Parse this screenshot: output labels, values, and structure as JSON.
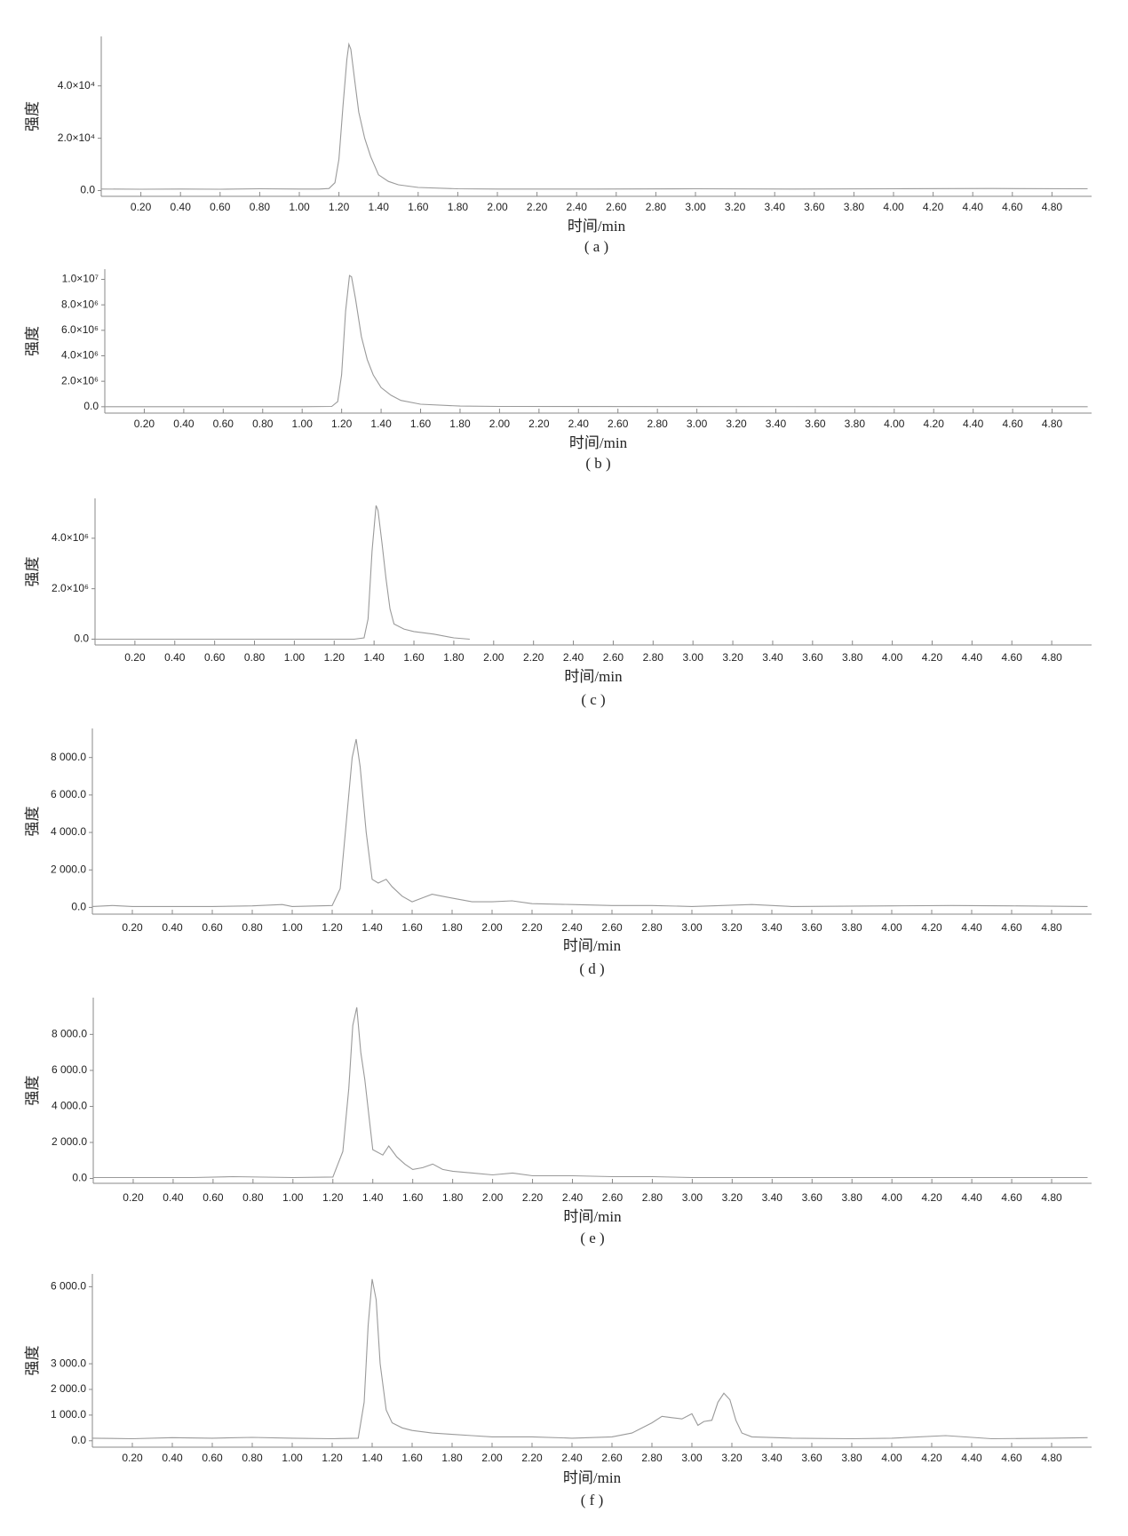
{
  "chart_data": [
    {
      "type": "line",
      "caption": "( a )",
      "x_label": "时间/min",
      "y_label": "强度",
      "color": "#9a9a9a",
      "xlim": [
        0,
        5
      ],
      "ylim": [
        -2200,
        58900
      ],
      "xticks": [
        {
          "value": 0.2,
          "label": "0.20"
        },
        {
          "value": 0.4,
          "label": "0.40"
        },
        {
          "value": 0.6,
          "label": "0.60"
        },
        {
          "value": 0.8,
          "label": "0.80"
        },
        {
          "value": 1.0,
          "label": "1.00"
        },
        {
          "value": 1.2,
          "label": "1.20"
        },
        {
          "value": 1.4,
          "label": "1.40"
        },
        {
          "value": 1.6,
          "label": "1.60"
        },
        {
          "value": 1.8,
          "label": "1.80"
        },
        {
          "value": 2.0,
          "label": "2.00"
        },
        {
          "value": 2.2,
          "label": "2.20"
        },
        {
          "value": 2.4,
          "label": "2.40"
        },
        {
          "value": 2.6,
          "label": "2.60"
        },
        {
          "value": 2.8,
          "label": "2.80"
        },
        {
          "value": 3.0,
          "label": "3.00"
        },
        {
          "value": 3.2,
          "label": "3.20"
        },
        {
          "value": 3.4,
          "label": "3.40"
        },
        {
          "value": 3.6,
          "label": "3.60"
        },
        {
          "value": 3.8,
          "label": "3.80"
        },
        {
          "value": 4.0,
          "label": "4.00"
        },
        {
          "value": 4.2,
          "label": "4.20"
        },
        {
          "value": 4.4,
          "label": "4.40"
        },
        {
          "value": 4.6,
          "label": "4.60"
        },
        {
          "value": 4.8,
          "label": "4.80"
        }
      ],
      "yticks": [
        {
          "value": 0,
          "label": "0.0"
        },
        {
          "value": 20000,
          "label": "2.0×10⁴"
        },
        {
          "value": 40000,
          "label": "4.0×10⁴"
        }
      ],
      "x": [
        0,
        0.2,
        0.4,
        0.6,
        0.8,
        1.0,
        1.1,
        1.15,
        1.18,
        1.2,
        1.22,
        1.24,
        1.25,
        1.26,
        1.28,
        1.3,
        1.33,
        1.36,
        1.4,
        1.45,
        1.5,
        1.6,
        1.8,
        2.0,
        2.5,
        3.0,
        3.5,
        4.0,
        4.5,
        4.98
      ],
      "values": [
        600,
        500,
        600,
        500,
        700,
        600,
        600,
        800,
        3000,
        12000,
        32000,
        50000,
        55900,
        54000,
        42000,
        30000,
        20000,
        13000,
        6000,
        3500,
        2200,
        1200,
        700,
        600,
        600,
        700,
        600,
        700,
        800,
        700
      ]
    },
    {
      "type": "line",
      "caption": "( b )",
      "x_label": "时间/min",
      "y_label": "强度",
      "color": "#9a9a9a",
      "xlim": [
        0,
        5
      ],
      "ylim": [
        -500000,
        10800000
      ],
      "xticks": [
        {
          "value": 0.2,
          "label": "0.20"
        },
        {
          "value": 0.4,
          "label": "0.40"
        },
        {
          "value": 0.6,
          "label": "0.60"
        },
        {
          "value": 0.8,
          "label": "0.80"
        },
        {
          "value": 1.0,
          "label": "1.00"
        },
        {
          "value": 1.2,
          "label": "1.20"
        },
        {
          "value": 1.4,
          "label": "1.40"
        },
        {
          "value": 1.6,
          "label": "1.60"
        },
        {
          "value": 1.8,
          "label": "1.80"
        },
        {
          "value": 2.0,
          "label": "2.00"
        },
        {
          "value": 2.2,
          "label": "2.20"
        },
        {
          "value": 2.4,
          "label": "2.40"
        },
        {
          "value": 2.6,
          "label": "2.60"
        },
        {
          "value": 2.8,
          "label": "2.80"
        },
        {
          "value": 3.0,
          "label": "3.00"
        },
        {
          "value": 3.2,
          "label": "3.20"
        },
        {
          "value": 3.4,
          "label": "3.40"
        },
        {
          "value": 3.6,
          "label": "3.60"
        },
        {
          "value": 3.8,
          "label": "3.80"
        },
        {
          "value": 4.0,
          "label": "4.00"
        },
        {
          "value": 4.2,
          "label": "4.20"
        },
        {
          "value": 4.4,
          "label": "4.40"
        },
        {
          "value": 4.6,
          "label": "4.60"
        },
        {
          "value": 4.8,
          "label": "4.80"
        }
      ],
      "yticks": [
        {
          "value": 0,
          "label": "0.0"
        },
        {
          "value": 2000000,
          "label": "2.0×10⁶"
        },
        {
          "value": 4000000,
          "label": "4.0×10⁶"
        },
        {
          "value": 6000000,
          "label": "6.0×10⁶"
        },
        {
          "value": 8000000,
          "label": "8.0×10⁶"
        },
        {
          "value": 10000000,
          "label": "1.0×10⁷"
        }
      ],
      "x": [
        0,
        0.5,
        1.0,
        1.15,
        1.18,
        1.2,
        1.22,
        1.24,
        1.25,
        1.27,
        1.3,
        1.33,
        1.36,
        1.4,
        1.45,
        1.5,
        1.6,
        1.8,
        2.0,
        3.0,
        4.0,
        4.98
      ],
      "values": [
        0,
        0,
        0,
        20000,
        400000,
        2500000,
        7500000,
        10300000,
        10200000,
        8500000,
        5500000,
        3700000,
        2500000,
        1500000,
        900000,
        500000,
        200000,
        50000,
        20000,
        10000,
        0,
        0
      ]
    },
    {
      "type": "line",
      "caption": "( c )",
      "x_label": "时间/min",
      "y_label": "强度",
      "color": "#9a9a9a",
      "xlim": [
        0,
        5
      ],
      "ylim": [
        -230000,
        5580000
      ],
      "xticks": [
        {
          "value": 0.2,
          "label": "0.20"
        },
        {
          "value": 0.4,
          "label": "0.40"
        },
        {
          "value": 0.6,
          "label": "0.60"
        },
        {
          "value": 0.8,
          "label": "0.80"
        },
        {
          "value": 1.0,
          "label": "1.00"
        },
        {
          "value": 1.2,
          "label": "1.20"
        },
        {
          "value": 1.4,
          "label": "1.40"
        },
        {
          "value": 1.6,
          "label": "1.60"
        },
        {
          "value": 1.8,
          "label": "1.80"
        },
        {
          "value": 2.0,
          "label": "2.00"
        },
        {
          "value": 2.2,
          "label": "2.20"
        },
        {
          "value": 2.4,
          "label": "2.40"
        },
        {
          "value": 2.6,
          "label": "2.60"
        },
        {
          "value": 2.8,
          "label": "2.80"
        },
        {
          "value": 3.0,
          "label": "3.00"
        },
        {
          "value": 3.2,
          "label": "3.20"
        },
        {
          "value": 3.4,
          "label": "3.40"
        },
        {
          "value": 3.6,
          "label": "3.60"
        },
        {
          "value": 3.8,
          "label": "3.80"
        },
        {
          "value": 4.0,
          "label": "4.00"
        },
        {
          "value": 4.2,
          "label": "4.20"
        },
        {
          "value": 4.4,
          "label": "4.40"
        },
        {
          "value": 4.6,
          "label": "4.60"
        },
        {
          "value": 4.8,
          "label": "4.80"
        }
      ],
      "yticks": [
        {
          "value": 0,
          "label": "0.0"
        },
        {
          "value": 2000000,
          "label": "2.0×10⁶"
        },
        {
          "value": 4000000,
          "label": "4.0×10⁶"
        }
      ],
      "x": [
        0,
        0.5,
        1.0,
        1.3,
        1.35,
        1.37,
        1.39,
        1.41,
        1.42,
        1.44,
        1.46,
        1.48,
        1.5,
        1.55,
        1.6,
        1.7,
        1.8,
        1.88
      ],
      "values": [
        0,
        0,
        0,
        0,
        50000,
        800000,
        3500000,
        5300000,
        5100000,
        3800000,
        2400000,
        1200000,
        600000,
        400000,
        300000,
        200000,
        50000,
        0
      ]
    },
    {
      "type": "line",
      "caption": "( d )",
      "x_label": "时间/min",
      "y_label": "强度",
      "color": "#9a9a9a",
      "xlim": [
        0,
        5
      ],
      "ylim": [
        -360,
        9550
      ],
      "xticks": [
        {
          "value": 0.2,
          "label": "0.20"
        },
        {
          "value": 0.4,
          "label": "0.40"
        },
        {
          "value": 0.6,
          "label": "0.60"
        },
        {
          "value": 0.8,
          "label": "0.80"
        },
        {
          "value": 1.0,
          "label": "1.00"
        },
        {
          "value": 1.2,
          "label": "1.20"
        },
        {
          "value": 1.4,
          "label": "1.40"
        },
        {
          "value": 1.6,
          "label": "1.60"
        },
        {
          "value": 1.8,
          "label": "1.80"
        },
        {
          "value": 2.0,
          "label": "2.00"
        },
        {
          "value": 2.2,
          "label": "2.20"
        },
        {
          "value": 2.4,
          "label": "2.40"
        },
        {
          "value": 2.6,
          "label": "2.60"
        },
        {
          "value": 2.8,
          "label": "2.80"
        },
        {
          "value": 3.0,
          "label": "3.00"
        },
        {
          "value": 3.2,
          "label": "3.20"
        },
        {
          "value": 3.4,
          "label": "3.40"
        },
        {
          "value": 3.6,
          "label": "3.60"
        },
        {
          "value": 3.8,
          "label": "3.80"
        },
        {
          "value": 4.0,
          "label": "4.00"
        },
        {
          "value": 4.2,
          "label": "4.20"
        },
        {
          "value": 4.4,
          "label": "4.40"
        },
        {
          "value": 4.6,
          "label": "4.60"
        },
        {
          "value": 4.8,
          "label": "4.80"
        }
      ],
      "yticks": [
        {
          "value": 0,
          "label": "0.0"
        },
        {
          "value": 2000,
          "label": "2 000.0"
        },
        {
          "value": 4000,
          "label": "4 000.0"
        },
        {
          "value": 6000,
          "label": "6 000.0"
        },
        {
          "value": 8000,
          "label": "8 000.0"
        }
      ],
      "x": [
        0,
        0.1,
        0.2,
        0.4,
        0.6,
        0.8,
        0.95,
        1.0,
        1.2,
        1.24,
        1.27,
        1.3,
        1.32,
        1.34,
        1.37,
        1.4,
        1.43,
        1.47,
        1.5,
        1.55,
        1.6,
        1.65,
        1.7,
        1.75,
        1.8,
        1.9,
        2.0,
        2.1,
        2.2,
        2.4,
        2.6,
        2.8,
        3.0,
        3.3,
        3.5,
        4.0,
        4.3,
        4.6,
        4.98
      ],
      "values": [
        50,
        100,
        50,
        50,
        50,
        80,
        150,
        50,
        100,
        1000,
        4500,
        8000,
        8980,
        7500,
        4000,
        1500,
        1300,
        1500,
        1100,
        600,
        300,
        500,
        700,
        600,
        500,
        300,
        300,
        350,
        200,
        150,
        100,
        100,
        50,
        150,
        50,
        80,
        100,
        80,
        50
      ]
    },
    {
      "type": "line",
      "caption": "( e )",
      "x_label": "时间/min",
      "y_label": "强度",
      "color": "#9a9a9a",
      "xlim": [
        0,
        5
      ],
      "ylim": [
        -270,
        10040
      ],
      "xticks": [
        {
          "value": 0.2,
          "label": "0.20"
        },
        {
          "value": 0.4,
          "label": "0.40"
        },
        {
          "value": 0.6,
          "label": "0.60"
        },
        {
          "value": 0.8,
          "label": "0.80"
        },
        {
          "value": 1.0,
          "label": "1.00"
        },
        {
          "value": 1.2,
          "label": "1.20"
        },
        {
          "value": 1.4,
          "label": "1.40"
        },
        {
          "value": 1.6,
          "label": "1.60"
        },
        {
          "value": 1.8,
          "label": "1.80"
        },
        {
          "value": 2.0,
          "label": "2.00"
        },
        {
          "value": 2.2,
          "label": "2.20"
        },
        {
          "value": 2.4,
          "label": "2.40"
        },
        {
          "value": 2.6,
          "label": "2.60"
        },
        {
          "value": 2.8,
          "label": "2.80"
        },
        {
          "value": 3.0,
          "label": "3.00"
        },
        {
          "value": 3.2,
          "label": "3.20"
        },
        {
          "value": 3.4,
          "label": "3.40"
        },
        {
          "value": 3.6,
          "label": "3.60"
        },
        {
          "value": 3.8,
          "label": "3.80"
        },
        {
          "value": 4.0,
          "label": "4.00"
        },
        {
          "value": 4.2,
          "label": "4.20"
        },
        {
          "value": 4.4,
          "label": "4.40"
        },
        {
          "value": 4.6,
          "label": "4.60"
        },
        {
          "value": 4.8,
          "label": "4.80"
        }
      ],
      "yticks": [
        {
          "value": 0,
          "label": "0.0"
        },
        {
          "value": 2000,
          "label": "2 000.0"
        },
        {
          "value": 4000,
          "label": "4 000.0"
        },
        {
          "value": 6000,
          "label": "6 000.0"
        },
        {
          "value": 8000,
          "label": "8 000.0"
        }
      ],
      "x": [
        0,
        0.5,
        0.7,
        1.0,
        1.2,
        1.25,
        1.28,
        1.3,
        1.32,
        1.34,
        1.36,
        1.4,
        1.45,
        1.48,
        1.52,
        1.56,
        1.6,
        1.65,
        1.7,
        1.75,
        1.8,
        1.9,
        2.0,
        2.1,
        2.2,
        2.4,
        2.6,
        2.8,
        3.0,
        3.5,
        4.0,
        4.5,
        4.98
      ],
      "values": [
        50,
        50,
        100,
        50,
        80,
        1500,
        5000,
        8500,
        9500,
        7000,
        5500,
        1600,
        1300,
        1800,
        1200,
        800,
        500,
        600,
        800,
        500,
        400,
        300,
        200,
        300,
        150,
        150,
        100,
        100,
        50,
        50,
        50,
        50,
        50
      ]
    },
    {
      "type": "line",
      "caption": "( f )",
      "x_label": "时间/min",
      "y_label": "强度",
      "color": "#9a9a9a",
      "xlim": [
        0,
        5
      ],
      "ylim": [
        -250,
        6500
      ],
      "xticks": [
        {
          "value": 0.2,
          "label": "0.20"
        },
        {
          "value": 0.4,
          "label": "0.40"
        },
        {
          "value": 0.6,
          "label": "0.60"
        },
        {
          "value": 0.8,
          "label": "0.80"
        },
        {
          "value": 1.0,
          "label": "1.00"
        },
        {
          "value": 1.2,
          "label": "1.20"
        },
        {
          "value": 1.4,
          "label": "1.40"
        },
        {
          "value": 1.6,
          "label": "1.60"
        },
        {
          "value": 1.8,
          "label": "1.80"
        },
        {
          "value": 2.0,
          "label": "2.00"
        },
        {
          "value": 2.2,
          "label": "2.20"
        },
        {
          "value": 2.4,
          "label": "2.40"
        },
        {
          "value": 2.6,
          "label": "2.60"
        },
        {
          "value": 2.8,
          "label": "2.80"
        },
        {
          "value": 3.0,
          "label": "3.00"
        },
        {
          "value": 3.2,
          "label": "3.20"
        },
        {
          "value": 3.4,
          "label": "3.40"
        },
        {
          "value": 3.6,
          "label": "3.60"
        },
        {
          "value": 3.8,
          "label": "3.80"
        },
        {
          "value": 4.0,
          "label": "4.00"
        },
        {
          "value": 4.2,
          "label": "4.20"
        },
        {
          "value": 4.4,
          "label": "4.40"
        },
        {
          "value": 4.6,
          "label": "4.60"
        },
        {
          "value": 4.8,
          "label": "4.80"
        }
      ],
      "yticks": [
        {
          "value": 0,
          "label": "0.0"
        },
        {
          "value": 1000,
          "label": "1 000.0"
        },
        {
          "value": 2000,
          "label": "2 000.0"
        },
        {
          "value": 3000,
          "label": "3 000.0"
        },
        {
          "value": 6000,
          "label": "6 000.0"
        }
      ],
      "x": [
        0,
        0.2,
        0.4,
        0.6,
        0.8,
        1.0,
        1.2,
        1.33,
        1.36,
        1.38,
        1.4,
        1.42,
        1.44,
        1.47,
        1.5,
        1.55,
        1.6,
        1.7,
        1.8,
        1.9,
        2.0,
        2.2,
        2.4,
        2.6,
        2.7,
        2.8,
        2.85,
        2.9,
        2.95,
        3.0,
        3.03,
        3.06,
        3.1,
        3.13,
        3.16,
        3.19,
        3.22,
        3.25,
        3.3,
        3.5,
        3.8,
        4.0,
        4.27,
        4.5,
        4.8,
        4.98
      ],
      "values": [
        100,
        80,
        120,
        100,
        130,
        100,
        80,
        100,
        1500,
        4500,
        6300,
        5500,
        3000,
        1200,
        700,
        500,
        400,
        300,
        250,
        200,
        150,
        150,
        100,
        150,
        300,
        700,
        950,
        900,
        850,
        1050,
        600,
        750,
        800,
        1500,
        1850,
        1600,
        800,
        300,
        150,
        100,
        80,
        100,
        200,
        80,
        100,
        120
      ]
    }
  ]
}
